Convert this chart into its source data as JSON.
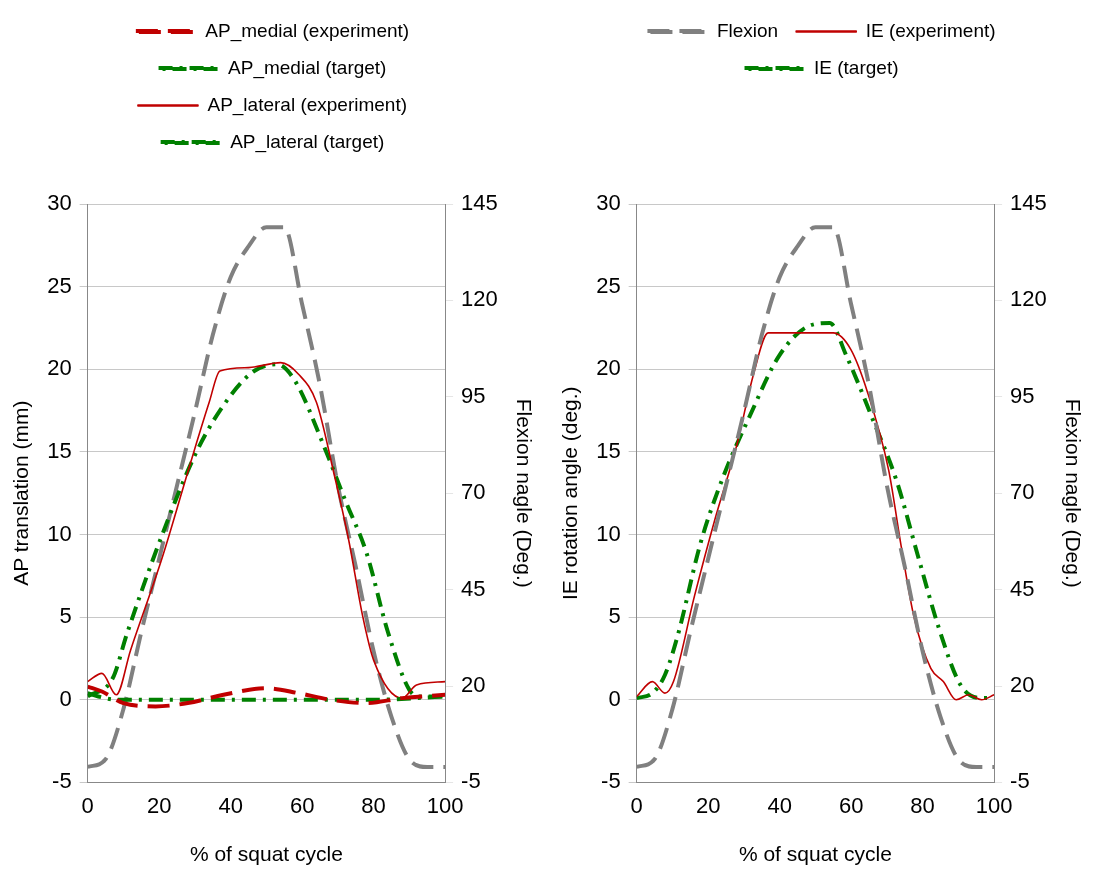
{
  "chart_data": [
    {
      "type": "line",
      "xlabel": "% of squat cycle",
      "ylabel": "AP translation (mm)",
      "y2label": "Flexion nagle (Deg.)",
      "xlim": [
        0,
        100
      ],
      "xticks": [
        0,
        20,
        40,
        60,
        80,
        100
      ],
      "ylim": [
        -5,
        30
      ],
      "yticks": [
        -5,
        0,
        5,
        10,
        15,
        20,
        25,
        30
      ],
      "y2lim": [
        -5,
        145
      ],
      "y2ticks": [
        -5,
        20,
        45,
        70,
        95,
        120,
        145
      ],
      "grid": "y",
      "legend": "top",
      "marker": "none",
      "series": [
        {
          "name": "AP_medial (experiment)",
          "color": "#c00000",
          "line_style": "dashed",
          "x": [
            0,
            4,
            10,
            19,
            28,
            38,
            50,
            59,
            68,
            78,
            88,
            100
          ],
          "values": [
            0.8,
            0.5,
            -0.2,
            -0.4,
            -0.2,
            0.3,
            0.7,
            0.4,
            0,
            -0.2,
            0.1,
            0.3
          ]
        },
        {
          "name": "AP_medial (target)",
          "color": "#008000",
          "line_style": "dotted",
          "x": [
            0,
            3,
            8,
            20,
            40,
            60,
            80,
            100
          ],
          "values": [
            0.4,
            0.2,
            0,
            0,
            0,
            0,
            0,
            0.2
          ]
        },
        {
          "name": "AP_lateral (experiment)",
          "color": "#c00000",
          "line_style": "solid",
          "x": [
            0,
            4,
            8,
            12,
            21,
            29,
            34,
            37,
            45,
            54,
            59,
            64,
            69,
            73,
            77,
            80,
            88,
            92,
            100
          ],
          "values": [
            1.1,
            1.6,
            0.3,
            3,
            8.7,
            14.5,
            18,
            19.9,
            20.1,
            20.4,
            19.7,
            18,
            13.6,
            9.7,
            5,
            2.4,
            0.1,
            0.9,
            1.1
          ]
        },
        {
          "name": "AP_lateral (target)",
          "color": "#008000",
          "line_style": "dotted",
          "x": [
            0,
            7,
            11,
            20,
            30,
            37,
            46,
            53,
            58,
            66,
            72,
            78,
            84,
            90,
            93,
            100
          ],
          "values": [
            0.2,
            1.3,
            4,
            9.5,
            14.8,
            17.5,
            19.8,
            20.3,
            19.3,
            15.4,
            12.1,
            8.9,
            4.1,
            0.6,
            0.2,
            0.2
          ]
        },
        {
          "color": "#808080",
          "line_style": "dashed",
          "axis": "y2",
          "x": [
            0,
            5,
            10,
            15,
            20,
            25,
            30,
            35,
            40,
            45,
            50,
            55,
            60,
            65,
            70,
            75,
            80,
            85,
            90,
            95,
            100
          ],
          "values": [
            -1,
            1,
            14,
            34,
            53,
            72,
            91,
            111,
            126,
            134,
            139,
            139,
            119,
            98,
            72,
            51,
            29,
            12,
            1,
            -1,
            -1
          ]
        }
      ]
    },
    {
      "type": "line",
      "xlabel": "% of squat cycle",
      "ylabel": "IE rotation angle (deg.)",
      "y2label": "Flexion nagle (Deg.)",
      "xlim": [
        0,
        100
      ],
      "xticks": [
        0,
        20,
        40,
        60,
        80,
        100
      ],
      "ylim": [
        -5,
        30
      ],
      "yticks": [
        -5,
        0,
        5,
        10,
        15,
        20,
        25,
        30
      ],
      "y2lim": [
        -5,
        145
      ],
      "y2ticks": [
        -5,
        20,
        45,
        70,
        95,
        120,
        145
      ],
      "grid": "y",
      "legend": "top",
      "marker": "none",
      "series": [
        {
          "name": "Flexion",
          "color": "#808080",
          "line_style": "dashed",
          "axis": "y2",
          "x": [
            0,
            5,
            10,
            15,
            20,
            25,
            30,
            35,
            40,
            45,
            50,
            55,
            60,
            65,
            70,
            75,
            80,
            85,
            90,
            95,
            100
          ],
          "values": [
            -1,
            1,
            14,
            34,
            53,
            72,
            91,
            111,
            126,
            134,
            139,
            139,
            119,
            98,
            72,
            51,
            29,
            12,
            1,
            -1,
            -1
          ]
        },
        {
          "name": "IE (experiment)",
          "color": "#c00000",
          "line_style": "solid",
          "x": [
            0,
            4.4,
            7.9,
            10.3,
            16.2,
            22,
            28,
            32.7,
            36.8,
            55,
            59.9,
            64.6,
            70.5,
            74,
            77.6,
            82.3,
            85.8,
            89.4,
            92.9,
            96.5,
            100
          ],
          "values": [
            0.2,
            1.1,
            0.4,
            1.1,
            6.3,
            11,
            15.4,
            19.7,
            22.2,
            22.2,
            21.2,
            18.6,
            13.9,
            9.3,
            5,
            1.9,
            1.1,
            0,
            0.3,
            0,
            0.3
          ]
        },
        {
          "name": "IE (target)",
          "color": "#008000",
          "line_style": "dotted",
          "x": [
            0,
            4.4,
            7.9,
            11.5,
            17.9,
            24.4,
            31.5,
            39.8,
            48,
            54,
            58.7,
            65.8,
            72.8,
            78.7,
            84.6,
            90.6,
            96.5,
            100
          ],
          "values": [
            0.1,
            0.4,
            1.5,
            3.9,
            9.5,
            13.6,
            17.1,
            20.8,
            22.6,
            22.8,
            20.8,
            17.1,
            13.2,
            8.7,
            4.3,
            0.9,
            0.1,
            0.1
          ]
        }
      ]
    }
  ]
}
